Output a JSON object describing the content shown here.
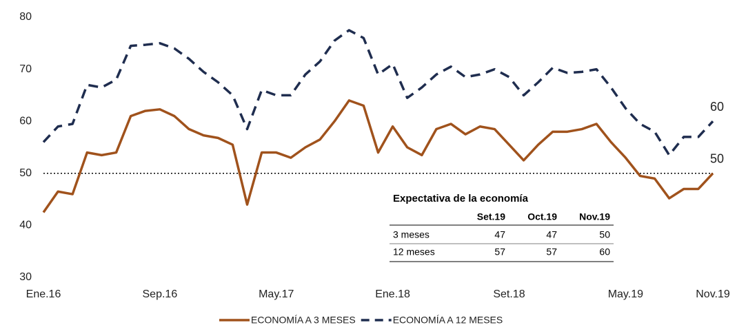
{
  "chart_data": {
    "type": "line",
    "categories": [
      "Ene.16",
      null,
      null,
      null,
      null,
      null,
      null,
      null,
      "Sep.16",
      null,
      null,
      null,
      null,
      null,
      null,
      null,
      "May.17",
      null,
      null,
      null,
      null,
      null,
      null,
      null,
      "Ene.18",
      null,
      null,
      null,
      null,
      null,
      null,
      null,
      "Set.18",
      null,
      null,
      null,
      null,
      null,
      null,
      null,
      "May.19",
      null,
      null,
      null,
      null,
      null,
      "Nov.19"
    ],
    "series": [
      {
        "name": "ECONOMÍA A 3 MESES",
        "color": "#a0521c",
        "dash": false,
        "values": [
          42.5,
          46.5,
          46,
          54,
          53.5,
          54,
          61,
          62,
          62.3,
          61,
          58.5,
          57.3,
          56.8,
          55.5,
          44,
          54,
          54,
          53,
          55,
          56.5,
          60,
          64,
          63,
          54,
          59,
          55,
          53.5,
          58.5,
          59.5,
          57.5,
          59,
          58.5,
          55.5,
          52.5,
          55.5,
          58,
          58,
          58.5,
          59.5,
          56,
          53,
          49.5,
          49,
          45.2,
          47,
          47,
          50
        ]
      },
      {
        "name": "ECONOMÍA A 12 MESES",
        "color": "#1f2d4f",
        "dash": true,
        "values": [
          56,
          59,
          59.5,
          67,
          66.5,
          68,
          74.5,
          74.7,
          75,
          74,
          72,
          69.5,
          67.5,
          65,
          58.5,
          66,
          65,
          65,
          69,
          71.5,
          75.5,
          77.5,
          76,
          69,
          71,
          64.5,
          66.5,
          69,
          70.5,
          68.5,
          69,
          70,
          68.5,
          65,
          67.5,
          70.3,
          69.3,
          69.5,
          70,
          66.5,
          62.5,
          59.5,
          58,
          53.5,
          57,
          57,
          60
        ]
      }
    ],
    "ylim": [
      30,
      80
    ],
    "yticks": [
      30,
      40,
      50,
      60,
      70,
      80
    ],
    "reference_line": 50,
    "end_labels": true,
    "legend": "bottom",
    "grid": false,
    "table": {
      "title": "Expectativa de la economía",
      "columns": [
        "Set.19",
        "Oct.19",
        "Nov.19"
      ],
      "rows": [
        {
          "label": "3 meses",
          "values": [
            47,
            47,
            50
          ]
        },
        {
          "label": "12 meses",
          "values": [
            57,
            57,
            60
          ]
        }
      ]
    }
  }
}
